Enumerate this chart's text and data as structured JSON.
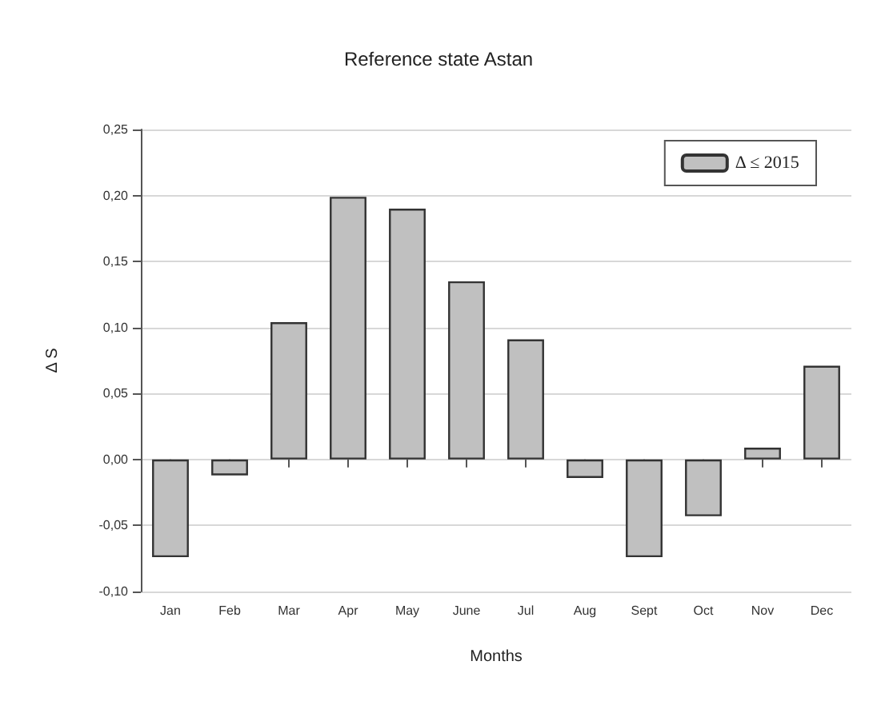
{
  "chart_data": {
    "type": "bar",
    "title": "Reference state Astan",
    "xlabel": "Months",
    "ylabel": "Δ S",
    "categories": [
      "Jan",
      "Feb",
      "Mar",
      "Apr",
      "May",
      "June",
      "Jul",
      "Aug",
      "Sept",
      "Oct",
      "Nov",
      "Dec"
    ],
    "series": [
      {
        "name": "Δ ≤ 2015",
        "color": "#c0c0c0",
        "values": [
          -0.074,
          -0.012,
          0.104,
          0.199,
          0.19,
          0.135,
          0.091,
          -0.014,
          -0.074,
          -0.043,
          0.009,
          0.071
        ]
      }
    ],
    "ylim": [
      -0.1,
      0.25
    ],
    "yticks": [
      {
        "value": -0.1,
        "label": "-0,10"
      },
      {
        "value": -0.05,
        "label": "-0,05"
      },
      {
        "value": 0,
        "label": "0,00"
      },
      {
        "value": 0.05,
        "label": "0,05"
      },
      {
        "value": 0.1,
        "label": "0,10"
      },
      {
        "value": 0.15,
        "label": "0,15"
      },
      {
        "value": 0.2,
        "label": "0,20"
      },
      {
        "value": 0.25,
        "label": "0,25"
      }
    ],
    "grid": "y",
    "legend": "top right"
  }
}
